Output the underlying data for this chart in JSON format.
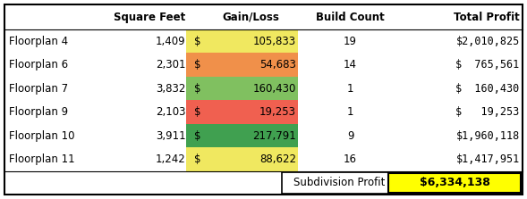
{
  "rows": [
    {
      "label": "Floorplan 4",
      "sq_ft": "1,409",
      "gain_loss": "105,833",
      "build_count": "19",
      "total_profit": "$2,010,825",
      "cell_color": "#f0e860"
    },
    {
      "label": "Floorplan 6",
      "sq_ft": "2,301",
      "gain_loss": "54,683",
      "build_count": "14",
      "total_profit": "$  765,561",
      "cell_color": "#f0904a"
    },
    {
      "label": "Floorplan 7",
      "sq_ft": "3,832",
      "gain_loss": "160,430",
      "build_count": "1",
      "total_profit": "$  160,430",
      "cell_color": "#80c060"
    },
    {
      "label": "Floorplan 9",
      "sq_ft": "2,103",
      "gain_loss": "19,253",
      "build_count": "1",
      "total_profit": "$   19,253",
      "cell_color": "#f06050"
    },
    {
      "label": "Floorplan 10",
      "sq_ft": "3,911",
      "gain_loss": "217,791",
      "build_count": "9",
      "total_profit": "$1,960,118",
      "cell_color": "#40a050"
    },
    {
      "label": "Floorplan 11",
      "sq_ft": "1,242",
      "gain_loss": "88,622",
      "build_count": "16",
      "total_profit": "$1,417,951",
      "cell_color": "#f0e860"
    }
  ],
  "footer_label": "Subdivision Profit",
  "footer_value": "$6,334,138",
  "footer_bg": "#ffff00",
  "border_color": "#000000",
  "font_size": 8.5,
  "header_font_size": 8.5
}
